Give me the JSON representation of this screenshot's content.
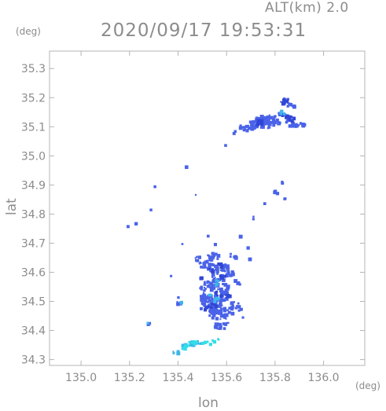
{
  "header": {
    "altitude_label": "ALT(km) 2.0",
    "timestamp": "2020/09/17 19:53:31"
  },
  "chart_data": {
    "type": "scatter",
    "title": "2020/09/17 19:53:31",
    "subtitle": "ALT(km) 2.0",
    "xlabel": "lon",
    "ylabel": "lat",
    "x_unit": "(deg)",
    "y_unit": "(deg)",
    "xlim": [
      134.87,
      136.17
    ],
    "ylim": [
      34.28,
      35.36
    ],
    "x_ticks": [
      "135.0",
      "135.2",
      "135.4",
      "135.6",
      "135.8",
      "136.0"
    ],
    "y_ticks": [
      "34.3",
      "34.4",
      "34.5",
      "34.6",
      "34.7",
      "34.8",
      "34.9",
      "35.0",
      "35.1",
      "35.2",
      "35.3"
    ],
    "grid": false,
    "colors": {
      "main": "#4a63e8",
      "strong": "#3146d6",
      "light": "#3fb6ea",
      "cyan": "#33dde8"
    },
    "series": [
      {
        "color": "main",
        "points": [
          [
            135.72,
            35.12,
            1.8
          ],
          [
            135.74,
            35.13,
            1.6
          ],
          [
            135.76,
            35.11,
            1.7
          ],
          [
            135.7,
            35.11,
            1.4
          ],
          [
            135.68,
            35.1,
            1.2
          ],
          [
            135.78,
            35.13,
            1.5
          ],
          [
            135.8,
            35.12,
            1.3
          ],
          [
            135.66,
            35.1,
            1.0
          ],
          [
            135.86,
            35.12,
            1.4
          ],
          [
            135.88,
            35.11,
            1.2
          ],
          [
            135.91,
            35.11,
            1.0
          ],
          [
            135.84,
            35.19,
            1.2
          ],
          [
            135.86,
            35.18,
            1.0
          ],
          [
            135.82,
            35.15,
            0.8
          ],
          [
            135.52,
            34.5,
            2.4
          ],
          [
            135.55,
            34.48,
            2.2
          ],
          [
            135.57,
            34.52,
            2.0
          ],
          [
            135.53,
            34.56,
            2.0
          ],
          [
            135.56,
            34.59,
            1.8
          ],
          [
            135.58,
            34.55,
            1.6
          ],
          [
            135.54,
            34.62,
            1.7
          ],
          [
            135.52,
            34.65,
            1.4
          ],
          [
            135.5,
            34.63,
            1.2
          ],
          [
            135.59,
            34.62,
            1.5
          ],
          [
            135.61,
            34.6,
            1.2
          ],
          [
            135.62,
            34.66,
            1.0
          ],
          [
            135.63,
            34.49,
            1.3
          ],
          [
            135.6,
            34.47,
            1.4
          ],
          [
            135.58,
            34.45,
            1.2
          ],
          [
            135.65,
            34.48,
            0.9
          ],
          [
            135.51,
            34.52,
            1.6
          ],
          [
            135.54,
            34.46,
            1.6
          ],
          [
            135.49,
            34.55,
            1.0
          ],
          [
            135.56,
            34.42,
            1.2
          ],
          [
            135.58,
            34.42,
            1.0
          ],
          [
            135.47,
            34.65,
            0.9
          ],
          [
            135.55,
            34.66,
            1.2
          ],
          [
            135.64,
            34.57,
            0.9
          ],
          [
            135.4,
            34.5,
            0.8
          ],
          [
            135.27,
            34.43,
            0.7
          ],
          [
            135.71,
            34.79,
            0.5
          ],
          [
            135.8,
            34.88,
            0.7
          ],
          [
            135.82,
            34.91,
            0.6
          ],
          [
            135.84,
            34.86,
            0.6
          ]
        ]
      },
      {
        "color": "strong",
        "points": [
          [
            135.83,
            35.19,
            1.0
          ],
          [
            135.84,
            35.14,
            1.2
          ],
          [
            135.86,
            35.13,
            1.0
          ],
          [
            135.73,
            35.12,
            1.0
          ],
          [
            135.56,
            34.53,
            1.0
          ],
          [
            135.54,
            34.49,
            0.9
          ],
          [
            135.58,
            34.59,
            0.8
          ],
          [
            135.6,
            34.52,
            0.8
          ],
          [
            135.53,
            34.61,
            0.7
          ],
          [
            135.51,
            34.48,
            0.8
          ],
          [
            135.49,
            34.59,
            0.6
          ],
          [
            135.57,
            34.63,
            0.7
          ]
        ]
      },
      {
        "color": "light",
        "points": [
          [
            135.83,
            35.15,
            1.0
          ],
          [
            135.55,
            34.51,
            0.9
          ],
          [
            135.56,
            34.57,
            0.8
          ],
          [
            135.53,
            34.52,
            0.8
          ],
          [
            135.41,
            34.5,
            0.6
          ],
          [
            135.27,
            34.43,
            0.4
          ],
          [
            135.45,
            34.36,
            0.9
          ],
          [
            135.47,
            34.36,
            0.8
          ],
          [
            135.43,
            34.35,
            0.8
          ],
          [
            135.42,
            34.35,
            0.7
          ],
          [
            135.4,
            34.33,
            0.6
          ],
          [
            135.38,
            34.33,
            0.5
          ],
          [
            135.49,
            34.36,
            0.6
          ]
        ]
      },
      {
        "color": "cyan",
        "points": [
          [
            135.43,
            34.35,
            0.9
          ],
          [
            135.45,
            34.36,
            0.8
          ],
          [
            135.47,
            34.36,
            0.7
          ],
          [
            135.5,
            34.36,
            0.6
          ],
          [
            135.52,
            34.36,
            0.6
          ],
          [
            135.54,
            34.37,
            0.5
          ],
          [
            135.56,
            34.37,
            0.5
          ],
          [
            135.41,
            34.34,
            0.6
          ]
        ]
      },
      {
        "color": "main",
        "points": [
          [
            135.28,
            34.82,
            0.3
          ],
          [
            135.22,
            34.77,
            0.4
          ],
          [
            135.19,
            34.76,
            0.3
          ],
          [
            135.3,
            34.9,
            0.2
          ],
          [
            135.43,
            34.97,
            0.3
          ],
          [
            135.47,
            34.87,
            0.2
          ],
          [
            135.52,
            34.73,
            0.2
          ],
          [
            135.55,
            34.7,
            0.3
          ],
          [
            135.65,
            34.73,
            0.2
          ],
          [
            135.68,
            34.69,
            0.2
          ],
          [
            135.59,
            35.04,
            0.2
          ],
          [
            135.62,
            35.08,
            0.4
          ],
          [
            135.63,
            35.09,
            0.3
          ],
          [
            135.75,
            34.84,
            0.3
          ],
          [
            135.41,
            34.7,
            0.4
          ],
          [
            135.69,
            34.65,
            0.4
          ],
          [
            135.6,
            34.43,
            0.5
          ],
          [
            135.66,
            34.45,
            0.4
          ],
          [
            135.37,
            34.59,
            0.4
          ],
          [
            135.4,
            34.52,
            0.3
          ]
        ]
      }
    ]
  }
}
